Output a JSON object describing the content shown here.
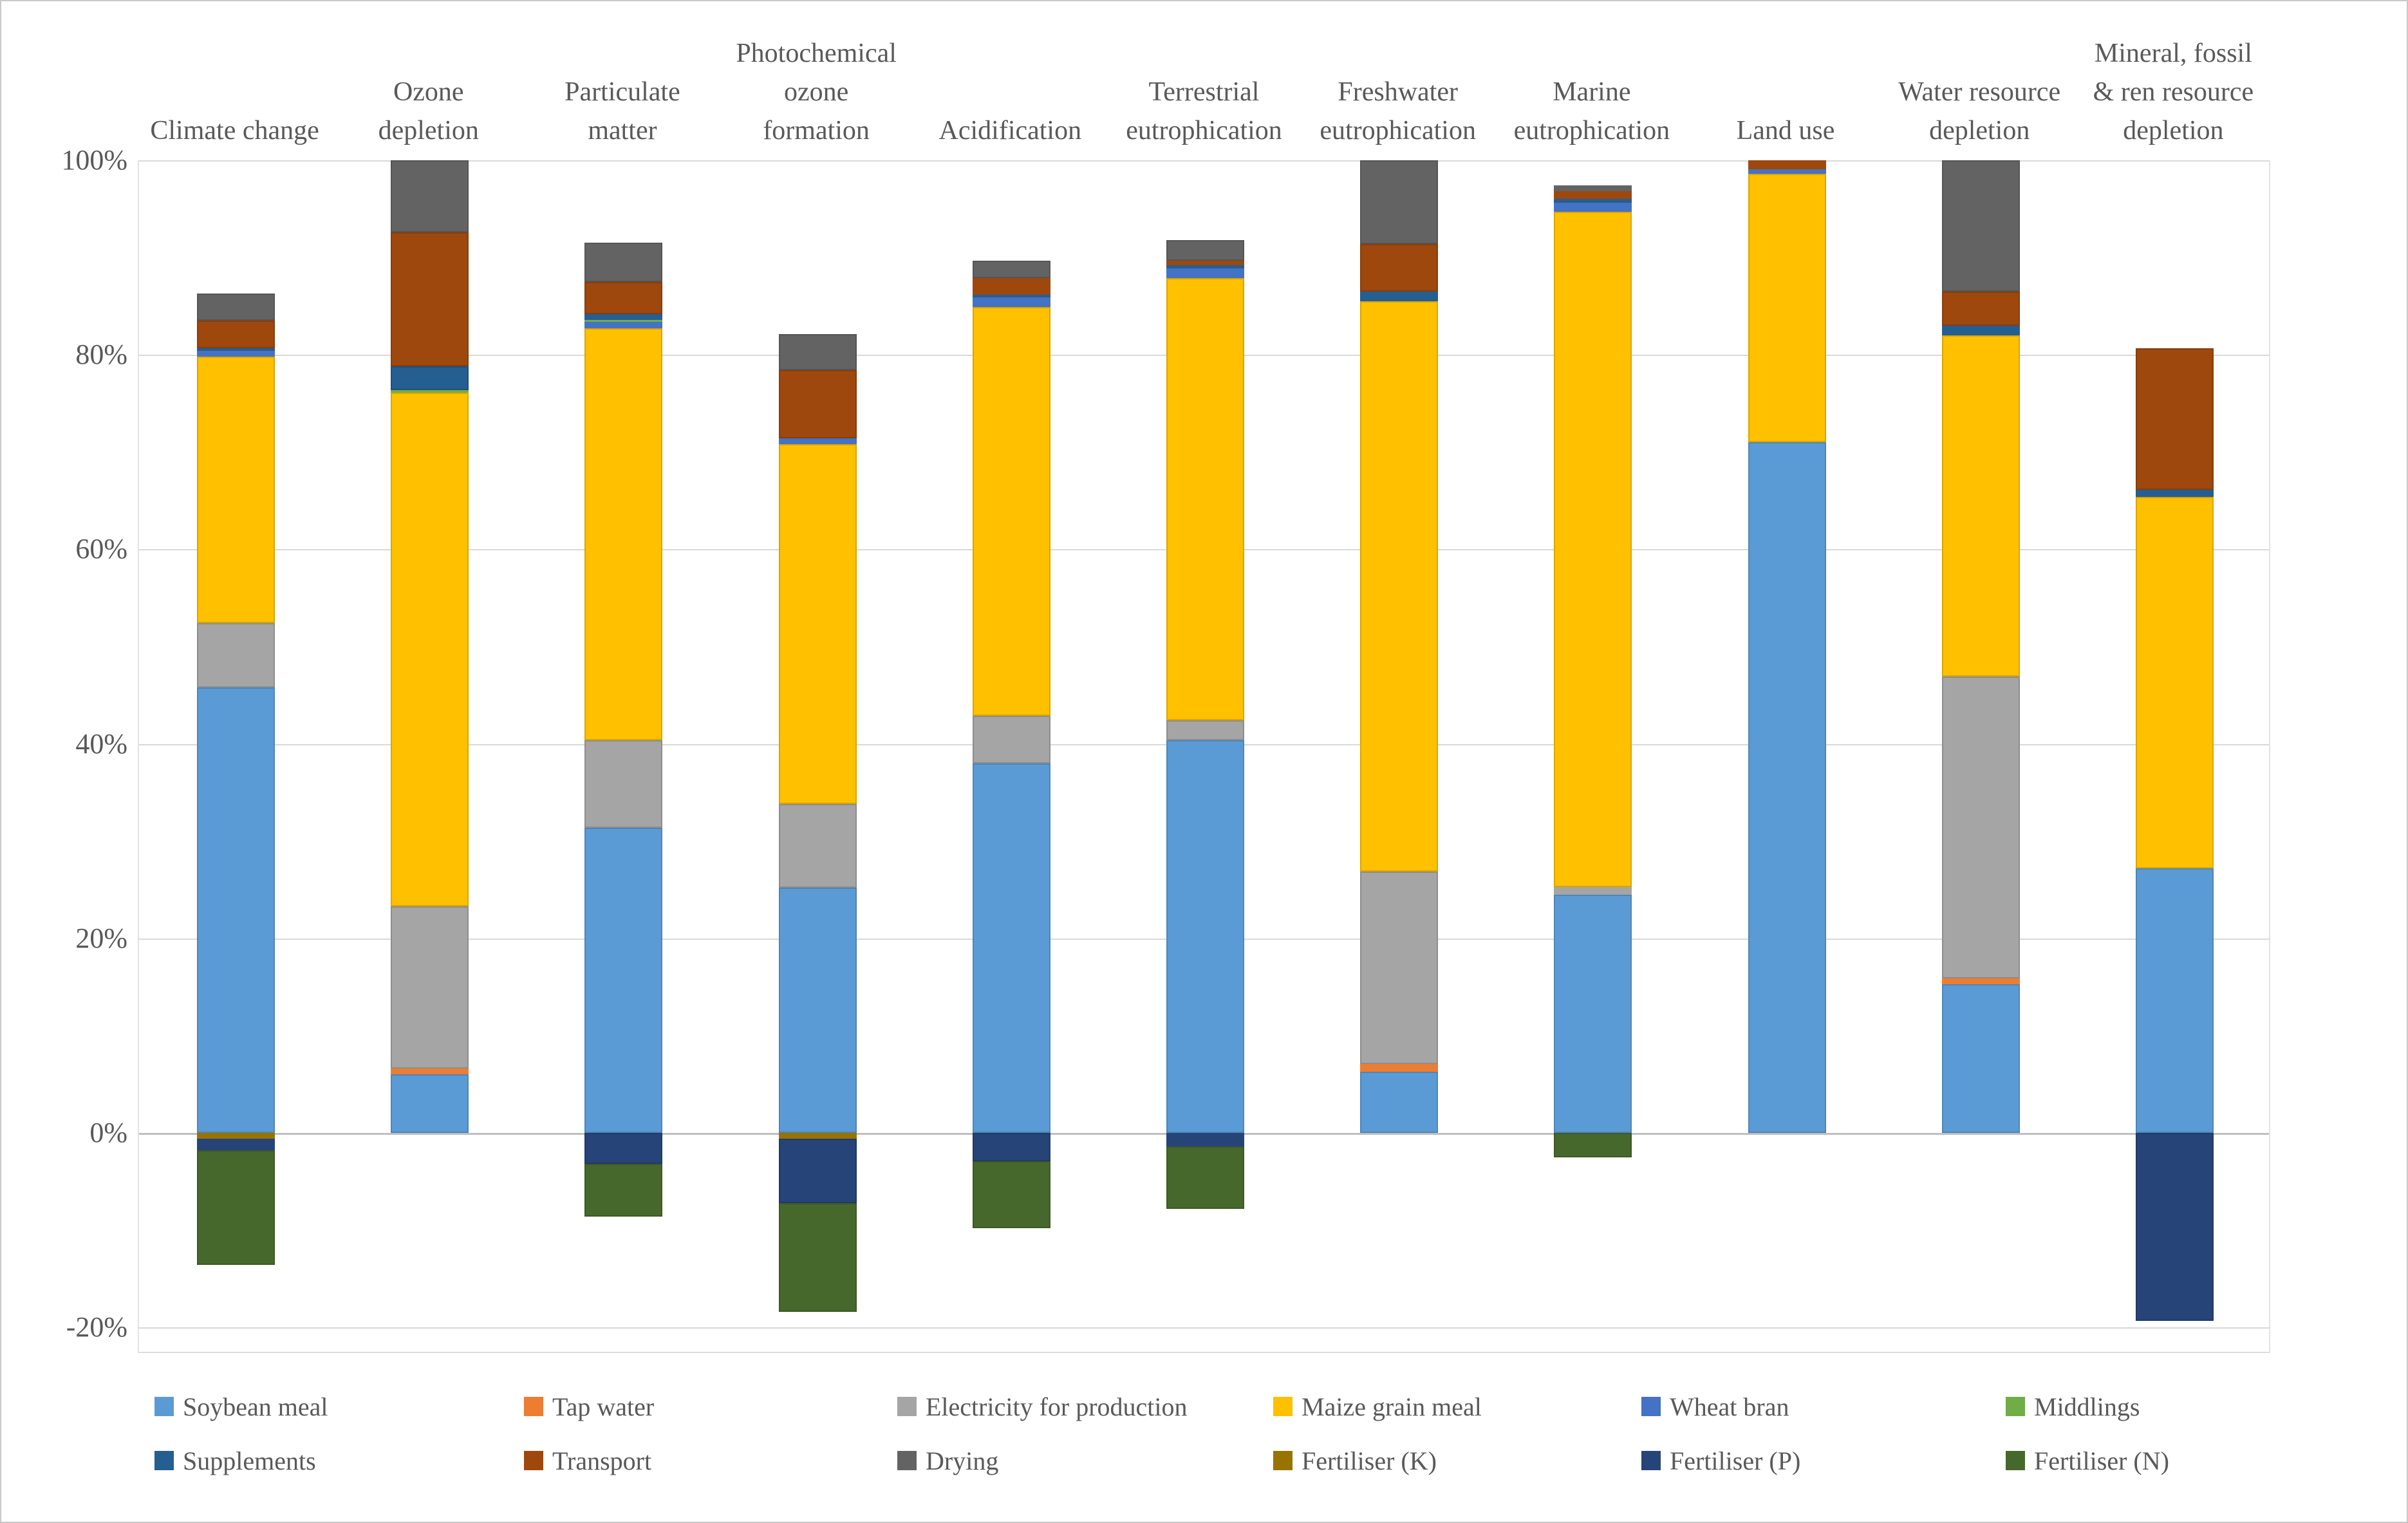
{
  "chart_data": {
    "type": "bar",
    "stacked": true,
    "title": "",
    "xlabel": "",
    "ylabel": "",
    "ylim": [
      -20,
      100
    ],
    "grid": true,
    "legend_position": "bottom",
    "y_tick_values": [
      100,
      80,
      60,
      40,
      20,
      0,
      -20
    ],
    "y_tick_labels": [
      "100%",
      "80%",
      "60%",
      "40%",
      "20%",
      "0%",
      "-20%"
    ],
    "categories": [
      "Climate change",
      "Ozone depletion",
      "Particulate matter",
      "Photochemical ozone formation",
      "Acidification",
      "Terrestrial eutrophication",
      "Freshwater eutrophication",
      "Marine eutrophication",
      "Land use",
      "Water resource depletion",
      "Mineral, fossil & ren resource depletion"
    ],
    "category_label_lines": [
      [
        "Climate change"
      ],
      [
        "Ozone",
        "depletion"
      ],
      [
        "Particulate",
        "matter"
      ],
      [
        "Photochemical",
        "ozone",
        "formation"
      ],
      [
        "Acidification"
      ],
      [
        "Terrestrial",
        "eutrophication"
      ],
      [
        "Freshwater",
        "eutrophication"
      ],
      [
        "Marine",
        "eutrophication"
      ],
      [
        "Land use"
      ],
      [
        "Water resource",
        "depletion"
      ],
      [
        "Mineral, fossil",
        "& ren resource",
        "depletion"
      ]
    ],
    "series": [
      {
        "key": "soybean-meal",
        "name": "Soybean meal",
        "color": "#5B9BD5",
        "values": [
          45.8,
          6.0,
          31.4,
          25.2,
          38.0,
          40.4,
          6.3,
          24.5,
          71.0,
          15.3,
          27.2
        ]
      },
      {
        "key": "tap-water",
        "name": "Tap water",
        "color": "#ED7D31",
        "values": [
          0,
          0.6,
          0,
          0,
          0,
          0,
          0.8,
          0,
          0,
          0.6,
          0
        ]
      },
      {
        "key": "electricity-for-production",
        "name": "Electricity for production",
        "color": "#A5A5A5",
        "values": [
          6.6,
          16.7,
          9.0,
          8.6,
          4.9,
          2.0,
          19.8,
          0.8,
          0,
          31.0,
          0
        ]
      },
      {
        "key": "maize-grain-meal",
        "name": "Maize grain meal",
        "color": "#FFC000",
        "values": [
          27.4,
          52.8,
          42.3,
          37.0,
          42.0,
          45.5,
          58.6,
          69.4,
          27.6,
          35.1,
          38.2
        ]
      },
      {
        "key": "wheat-bran",
        "name": "Wheat bran",
        "color": "#4472C4",
        "values": [
          0.6,
          0,
          0.7,
          0.6,
          1.0,
          1.0,
          0,
          0.9,
          0.5,
          0,
          0
        ]
      },
      {
        "key": "middlings",
        "name": "Middlings",
        "color": "#70AD47",
        "values": [
          0,
          0.3,
          0.2,
          0,
          0,
          0,
          0,
          0,
          0,
          0,
          0
        ]
      },
      {
        "key": "supplements",
        "name": "Supplements",
        "color": "#255E91",
        "values": [
          0.3,
          2.4,
          0.6,
          0,
          0.3,
          0.3,
          1.0,
          0.4,
          0,
          1.0,
          0.7
        ]
      },
      {
        "key": "transport",
        "name": "Transport",
        "color": "#9E480E",
        "values": [
          2.8,
          13.8,
          3.3,
          7.0,
          1.7,
          0.5,
          4.9,
          0.8,
          0.9,
          3.5,
          14.6
        ]
      },
      {
        "key": "drying",
        "name": "Drying",
        "color": "#636363",
        "values": [
          2.8,
          7.4,
          4.0,
          3.7,
          1.8,
          2.1,
          8.6,
          0.6,
          0,
          13.5,
          0
        ]
      },
      {
        "key": "fertiliser-k",
        "name": "Fertiliser (K)",
        "color": "#997300",
        "values": [
          -0.6,
          0,
          0,
          -0.6,
          0,
          0,
          0,
          0,
          0,
          0,
          0
        ]
      },
      {
        "key": "fertiliser-p",
        "name": "Fertiliser (P)",
        "color": "#264478",
        "values": [
          -1.2,
          0,
          -3.2,
          -6.6,
          -2.9,
          -1.4,
          0,
          0,
          0,
          0,
          -19.3
        ]
      },
      {
        "key": "fertiliser-n",
        "name": "Fertiliser (N)",
        "color": "#47682C",
        "values": [
          -11.8,
          0,
          -5.4,
          -11.2,
          -6.9,
          -6.4,
          0,
          -2.5,
          0,
          0,
          0
        ]
      }
    ]
  }
}
